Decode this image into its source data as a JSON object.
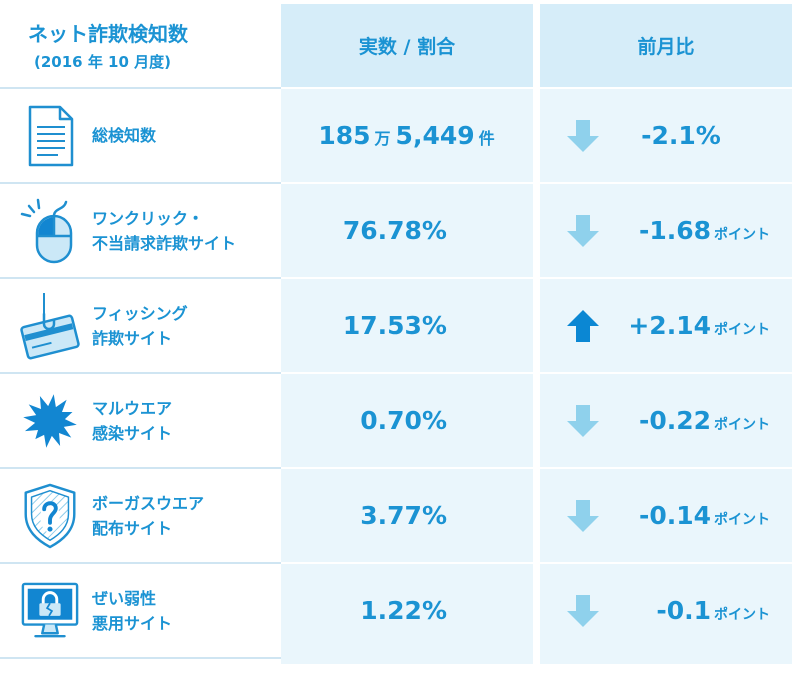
{
  "chart_data": {
    "type": "table",
    "title": "ネット詐欺検知数",
    "subtitle": "(2016 年 10 月度)",
    "columns": [
      "実数 / 割合",
      "前月比"
    ],
    "rows": [
      {
        "icon": "document-icon",
        "label": [
          "総検知数"
        ],
        "value": [
          "185",
          "万",
          "5,449",
          "件"
        ],
        "change": "-2.1%",
        "change_icon": "arrow-down-icon"
      },
      {
        "icon": "mouse-click-icon",
        "label": [
          "ワンクリック・",
          "不当請求詐欺サイト"
        ],
        "value": [
          "76.78%"
        ],
        "change": "-1.68",
        "change_unit": "ポイント",
        "change_icon": "arrow-down-icon"
      },
      {
        "icon": "credit-card-hook-icon",
        "label": [
          "フィッシング",
          "詐欺サイト"
        ],
        "value": [
          "17.53%"
        ],
        "change": "+2.14",
        "change_unit": "ポイント",
        "change_icon": "arrow-up-icon"
      },
      {
        "icon": "virus-burst-icon",
        "label": [
          "マルウエア",
          "感染サイト"
        ],
        "value": [
          "0.70%"
        ],
        "change": "-0.22",
        "change_unit": "ポイント",
        "change_icon": "arrow-down-icon"
      },
      {
        "icon": "shield-question-icon",
        "label": [
          "ボーガスウエア",
          "配布サイト"
        ],
        "value": [
          "3.77%"
        ],
        "change": "-0.14",
        "change_unit": "ポイント",
        "change_icon": "arrow-down-icon"
      },
      {
        "icon": "monitor-lock-icon",
        "label": [
          "ぜい弱性",
          "悪用サイト"
        ],
        "value": [
          "1.22%"
        ],
        "change": "-0.1",
        "change_unit": "ポイント",
        "change_icon": "arrow-down-icon"
      }
    ]
  },
  "colors": {
    "text": "#1b93d3",
    "header_bg": "#d6edf9",
    "column_bg": "#eaf6fc",
    "arrow_down": "#8fd1ec",
    "arrow_up": "#0b87d3"
  }
}
